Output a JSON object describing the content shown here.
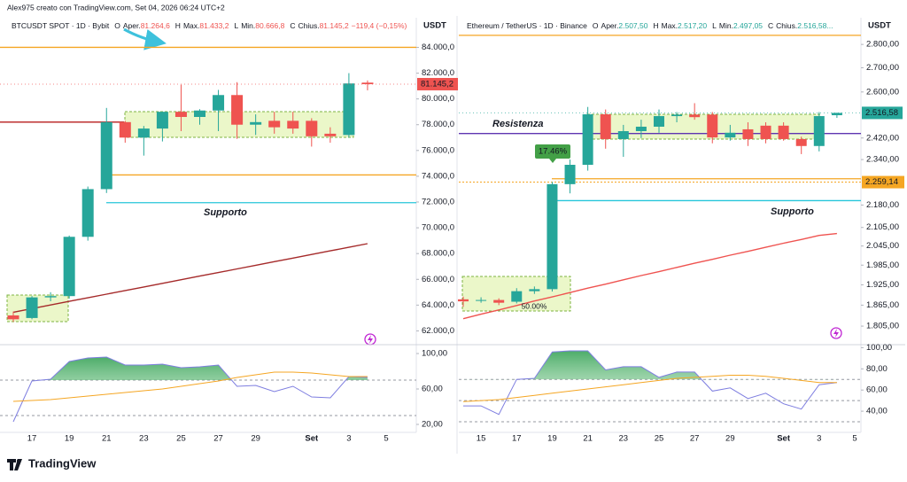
{
  "header": "Alex975 creato con TradingView.com, Set 04, 2026 06:24 UTC+2",
  "footer": "TradingView",
  "chart_data": [
    {
      "type": "candlestick",
      "legend": {
        "symbol": "BTCUSDT SPOT · 1D · Bybit",
        "items": [
          {
            "key": "O",
            "label": "Aper.",
            "value": "81.264,6"
          },
          {
            "key": "H",
            "label": "Max.",
            "value": "81.433,2"
          },
          {
            "key": "L",
            "label": "Min.",
            "value": "80.666,8"
          },
          {
            "key": "C",
            "label": "Chius.",
            "value": "81.145,2"
          }
        ],
        "change": "−119,4 (−0,15%)",
        "value_color": "#ef5350"
      },
      "currency": "USDT",
      "categories": [
        null,
        "17",
        null,
        "19",
        null,
        "21",
        null,
        "23",
        null,
        "25",
        null,
        "27",
        null,
        "29",
        null,
        null,
        "Set",
        null,
        "3",
        null,
        "5"
      ],
      "open": [
        63200,
        63000,
        64600,
        64700,
        69300,
        73000,
        78200,
        77000,
        77700,
        79000,
        78600,
        79100,
        80300,
        78000,
        78300,
        78300,
        78300,
        77300,
        77200,
        81264.6,
        null
      ],
      "high": [
        63500,
        64700,
        65000,
        69400,
        73200,
        79300,
        78300,
        77900,
        79000,
        81100,
        79200,
        80700,
        81300,
        78800,
        79000,
        79000,
        78500,
        77800,
        82000,
        81433.2,
        null
      ],
      "low": [
        62700,
        62900,
        64300,
        64500,
        69000,
        72700,
        76600,
        75600,
        76700,
        77500,
        78000,
        77500,
        76900,
        77200,
        77300,
        77300,
        76300,
        76600,
        77000,
        80666.8,
        null
      ],
      "close": [
        62900,
        64600,
        64700,
        69300,
        73000,
        78200,
        77000,
        77700,
        79000,
        78600,
        79100,
        80300,
        78000,
        78200,
        77800,
        77700,
        77100,
        77100,
        81200,
        81145.2,
        null
      ],
      "up_color": "#26a69a",
      "down_color": "#ef5350",
      "ma": {
        "color": "#a52a2a",
        "values": [
          63450,
          63730,
          64010,
          64290,
          64570,
          64850,
          65130,
          65410,
          65690,
          65970,
          66250,
          66530,
          66810,
          67090,
          67370,
          67650,
          67930,
          68210,
          68490,
          68770,
          null
        ]
      },
      "ylim": [
        61000,
        86300
      ],
      "yticks": [
        {
          "value": 62000,
          "label": "62.000,0"
        },
        {
          "value": 64000,
          "label": "64.000,0"
        },
        {
          "value": 66000,
          "label": "66.000,0"
        },
        {
          "value": 68000,
          "label": "68.000,0"
        },
        {
          "value": 70000,
          "label": "70.000,0"
        },
        {
          "value": 72000,
          "label": "72.000,0"
        },
        {
          "value": 74000,
          "label": "74.000,0"
        },
        {
          "value": 76000,
          "label": "76.000,0"
        },
        {
          "value": 78000,
          "label": "78.000,0"
        },
        {
          "value": 80000,
          "label": "80.000,0"
        },
        {
          "value": 82000,
          "label": "82.000,0"
        },
        {
          "value": 84000,
          "label": "84.000,0"
        }
      ],
      "log_scale": false,
      "levels": [
        {
          "value": 84000,
          "color": "#f5a623"
        },
        {
          "value": 74100,
          "color": "#f5a623"
        },
        {
          "value": 71950,
          "color": "#26c6da",
          "label": "Supporto"
        },
        {
          "value": 78200,
          "color": "#b71c1c"
        }
      ],
      "last_price_label": "81.145,2",
      "last_price_color": "#ef5350",
      "callouts": [],
      "indicator": {
        "ylim": [
          11,
          109
        ],
        "yticks": [
          {
            "value": 100,
            "label": "100,00"
          },
          {
            "value": 60,
            "label": "60,00"
          },
          {
            "value": 20,
            "label": "20,00"
          }
        ],
        "levels": [
          70,
          30
        ],
        "series": [
          {
            "color": "#7e7ee0",
            "values": [
              23,
              69,
              71,
              91,
              95,
              96,
              87,
              87,
              88,
              84,
              85,
              87,
              63,
              64,
              57,
              63,
              51,
              50,
              74,
              73,
              null
            ]
          },
          {
            "color": "#f5a623",
            "values": [
              46,
              47,
              48,
              50,
              52,
              54,
              56,
              58,
              60,
              63,
              66,
              69,
              73,
              76,
              79,
              79,
              78,
              76,
              74,
              74,
              null
            ]
          }
        ]
      }
    },
    {
      "type": "candlestick",
      "legend": {
        "symbol": "Ethereum / TetherUS · 1D · Binance",
        "items": [
          {
            "key": "O",
            "label": "Aper.",
            "value": "2.507,50"
          },
          {
            "key": "H",
            "label": "Max.",
            "value": "2.517,20"
          },
          {
            "key": "L",
            "label": "Min.",
            "value": "2.497,05"
          },
          {
            "key": "C",
            "label": "Chius.",
            "value": "2.516,58..."
          }
        ],
        "change": "",
        "value_color": "#26a69a"
      },
      "currency": "USDT",
      "categories": [
        null,
        "15",
        null,
        "17",
        null,
        "19",
        null,
        "21",
        null,
        "23",
        null,
        "25",
        null,
        "27",
        null,
        "29",
        null,
        null,
        "Set",
        null,
        "3",
        null,
        "5"
      ],
      "open": [
        1882,
        1878,
        1880,
        1875,
        1906,
        1912,
        2252,
        2321,
        2511,
        2416,
        2446,
        2463,
        2504,
        2510,
        2510,
        2422,
        2453,
        2467,
        2467,
        2416,
        2390,
        2507.5,
        null
      ],
      "high": [
        1890,
        1888,
        1885,
        1915,
        1920,
        2260,
        2340,
        2540,
        2530,
        2470,
        2490,
        2530,
        2520,
        2555,
        2520,
        2470,
        2480,
        2480,
        2480,
        2425,
        2520,
        2517.2,
        null
      ],
      "low": [
        1860,
        1872,
        1865,
        1870,
        1898,
        1905,
        2220,
        2300,
        2380,
        2350,
        2420,
        2440,
        2480,
        2490,
        2400,
        2410,
        2390,
        2400,
        2410,
        2360,
        2370,
        2497.05,
        null
      ],
      "close": [
        1876,
        1880,
        1872,
        1906,
        1912,
        2252,
        2321,
        2511,
        2416,
        2446,
        2463,
        2504,
        2510,
        2500,
        2422,
        2440,
        2416,
        2416,
        2416,
        2390,
        2504,
        2516.58,
        null
      ],
      "up_color": "#26a69a",
      "down_color": "#ef5350",
      "ma": {
        "color": "#ef5350",
        "values": [
          1826,
          1839,
          1851,
          1864,
          1877,
          1889,
          1902,
          1915,
          1927,
          1940,
          1953,
          1965,
          1978,
          1991,
          2003,
          2016,
          2028,
          2041,
          2054,
          2066,
          2079,
          2085,
          null
        ]
      },
      "ylim": [
        1756,
        2919
      ],
      "yticks": [
        {
          "value": 1805,
          "label": "1.805,00"
        },
        {
          "value": 1865,
          "label": "1.865,00"
        },
        {
          "value": 1925,
          "label": "1.925,00"
        },
        {
          "value": 1985,
          "label": "1.985,00"
        },
        {
          "value": 2045,
          "label": "2.045,00"
        },
        {
          "value": 2105,
          "label": "2.105,00"
        },
        {
          "value": 2180,
          "label": "2.180,00"
        },
        {
          "value": 2340,
          "label": "2.340,00"
        },
        {
          "value": 2420,
          "label": "2.420,00"
        },
        {
          "value": 2600,
          "label": "2.600,00"
        },
        {
          "value": 2700,
          "label": "2.700,00"
        },
        {
          "value": 2800,
          "label": "2.800,00"
        }
      ],
      "log_scale": true,
      "levels": [
        {
          "value": 2840,
          "color": "#f5a623"
        },
        {
          "value": 2437,
          "color": "#5e35b1",
          "label": "Resistenza"
        },
        {
          "value": 2271,
          "color": "#f5a623"
        },
        {
          "value": 2195,
          "color": "#26c6da",
          "label": "Supporto"
        }
      ],
      "marker": {
        "value": 2259.14,
        "label": "2.259,14",
        "color": "#f5a623"
      },
      "last_price_label": "2.516,58",
      "last_price_color": "#26a69a",
      "callouts": [
        "17.46%",
        "50.00%"
      ],
      "indicator": {
        "ylim": [
          20,
          102
        ],
        "yticks": [
          {
            "value": 100,
            "label": "100,00"
          },
          {
            "value": 80,
            "label": "80,00"
          },
          {
            "value": 60,
            "label": "60,00"
          },
          {
            "value": 40,
            "label": "40,00"
          }
        ],
        "levels": [
          70,
          50,
          30
        ],
        "series": [
          {
            "color": "#7e7ee0",
            "values": [
              45,
              45,
              37,
              70,
              71,
              96,
              97,
              97,
              79,
              82,
              82,
              72,
              77,
              77,
              59,
              62,
              52,
              57,
              47,
              42,
              65,
              67,
              null
            ]
          },
          {
            "color": "#f5a623",
            "values": [
              49,
              50,
              51,
              53,
              55,
              57,
              59,
              61,
              63,
              65,
              67,
              69,
              71,
              72,
              73,
              74,
              74,
              73,
              71,
              69,
              67,
              67,
              null
            ]
          }
        ]
      }
    }
  ]
}
